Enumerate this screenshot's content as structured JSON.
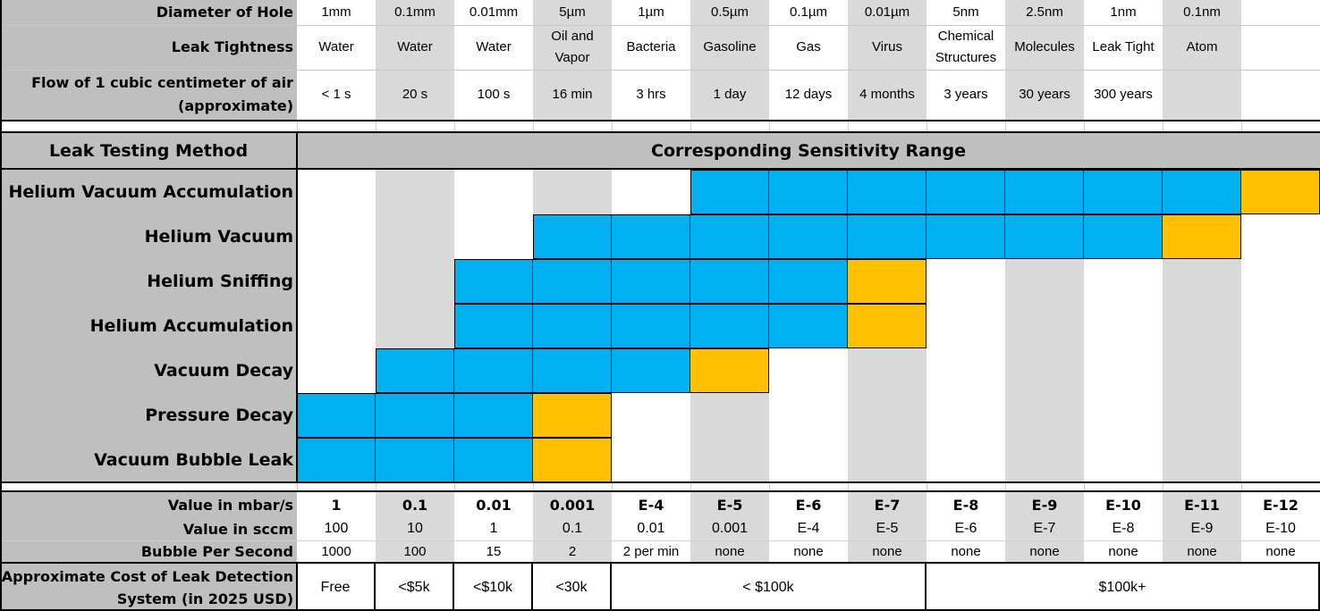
{
  "header": {
    "diameter_label": "Diameter of Hole",
    "tightness_label": "Leak Tightness",
    "flow_label": "Flow of 1 cubic centimeter of air (approximate)",
    "diameters": [
      "1mm",
      "0.1mm",
      "0.01mm",
      "5µm",
      "1µm",
      "0.5µm",
      "0.1µm",
      "0.01µm",
      "5nm",
      "2.5nm",
      "1nm",
      "0.1nm",
      ""
    ],
    "tightness": [
      "Water",
      "Water",
      "Water",
      "Oil and Vapor",
      "Bacteria",
      "Gasoline",
      "Gas",
      "Virus",
      "Chemical Structures",
      "Molecules",
      "Leak Tight",
      "Atom",
      ""
    ],
    "flow": [
      "< 1 s",
      "20 s",
      "100 s",
      "16 min",
      "3 hrs",
      "1 day",
      "12 days",
      "4 months",
      "3 years",
      "30   years",
      "300 years",
      "",
      ""
    ]
  },
  "methods": {
    "column_title": "Leak Testing Method",
    "range_title": "Corresponding Sensitivity Range",
    "rows": [
      {
        "name": "Helium Vacuum Accumulation",
        "start_col": 5,
        "end_col": 11,
        "limit_col": 12
      },
      {
        "name": "Helium Vacuum",
        "start_col": 3,
        "end_col": 10,
        "limit_col": 11
      },
      {
        "name": "Helium Sniffing",
        "start_col": 2,
        "end_col": 6,
        "limit_col": 7
      },
      {
        "name": "Helium Accumulation",
        "start_col": 2,
        "end_col": 6,
        "limit_col": 7
      },
      {
        "name": "Vacuum Decay",
        "start_col": 1,
        "end_col": 4,
        "limit_col": 5
      },
      {
        "name": "Pressure Decay",
        "start_col": 0,
        "end_col": 2,
        "limit_col": 3
      },
      {
        "name": "Vacuum Bubble Leak",
        "start_col": 0,
        "end_col": 2,
        "limit_col": 3
      }
    ]
  },
  "values": {
    "mbar_label": "Value in mbar/s",
    "sccm_label": "Value in sccm",
    "bubble_label": "Bubble Per Second",
    "cost_label": "Approximate Cost of Leak Detection System (in 2025 USD)",
    "mbar": [
      "1",
      "0.1",
      "0.01",
      "0.001",
      "E-4",
      "E-5",
      "E-6",
      "E-7",
      "E-8",
      "E-9",
      "E-10",
      "E-11",
      "E-12"
    ],
    "sccm": [
      "100",
      "10",
      "1",
      "0.1",
      "0.01",
      "0.001",
      "E-4",
      "E-5",
      "E-6",
      "E-7",
      "E-8",
      "E-9",
      "E-10"
    ],
    "bubble": [
      "1000",
      "100",
      "15",
      "2",
      "2 per min",
      "none",
      "none",
      "none",
      "none",
      "none",
      "none",
      "none",
      "none"
    ],
    "cost": [
      {
        "label": "Free",
        "span": 1
      },
      {
        "label": "<$5k",
        "span": 1
      },
      {
        "label": "<$10k",
        "span": 1
      },
      {
        "label": "<30k",
        "span": 1
      },
      {
        "label": "< $100k",
        "span": 4
      },
      {
        "label": "$100k+",
        "span": 5
      }
    ]
  },
  "colors": {
    "label_bg": "#BFBFBF",
    "stripe_bg": "#D9D9D9",
    "range_fill": "#00B0F0",
    "limit_fill": "#FFC000"
  }
}
